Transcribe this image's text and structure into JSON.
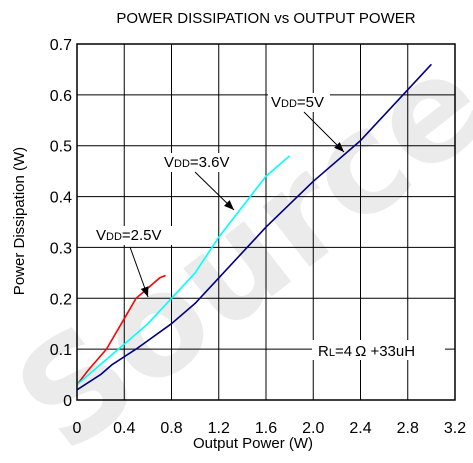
{
  "chart_data": {
    "type": "line",
    "title": "POWER DISSIPATION vs OUTPUT POWER",
    "xlabel": "Output Power (W)",
    "ylabel": "Power Dissipation (W)",
    "xlim": [
      0,
      3.2
    ],
    "ylim": [
      0,
      0.7
    ],
    "x_ticks": [
      "0",
      "0.4",
      "0.8",
      "1.2",
      "1.6",
      "2.0",
      "2.4",
      "2.8",
      "3.2"
    ],
    "y_ticks": [
      "0",
      "0.1",
      "0.2",
      "0.3",
      "0.4",
      "0.5",
      "0.6",
      "0.7"
    ],
    "grid": true,
    "series": [
      {
        "name": "VDD=2.5V",
        "color": "#ff0000",
        "x": [
          0,
          0.1,
          0.25,
          0.4,
          0.5,
          0.6,
          0.7,
          0.75
        ],
        "y": [
          0.03,
          0.06,
          0.1,
          0.16,
          0.2,
          0.22,
          0.24,
          0.245
        ]
      },
      {
        "name": "VDD=3.6V",
        "color": "#00ffff",
        "x": [
          0,
          0.2,
          0.4,
          0.6,
          0.8,
          1.0,
          1.2,
          1.4,
          1.6,
          1.8
        ],
        "y": [
          0.03,
          0.07,
          0.11,
          0.15,
          0.2,
          0.25,
          0.32,
          0.38,
          0.44,
          0.48
        ]
      },
      {
        "name": "VDD=5V",
        "color": "#000080",
        "x": [
          0,
          0.2,
          0.3,
          0.5,
          0.8,
          1.0,
          1.6,
          2.0,
          2.4,
          2.8,
          3.0
        ],
        "y": [
          0.02,
          0.05,
          0.07,
          0.1,
          0.15,
          0.19,
          0.34,
          0.43,
          0.51,
          0.61,
          0.66
        ]
      }
    ],
    "annotations": [
      {
        "main": "V",
        "sub": "DD",
        "rest": "=2.5V",
        "series": 0
      },
      {
        "main": "V",
        "sub": "DD",
        "rest": "=3.6V",
        "series": 1
      },
      {
        "main": "V",
        "sub": "DD",
        "rest": "=5V",
        "series": 2
      }
    ],
    "condition_label": {
      "main": "R",
      "sub": "L",
      "rest": "=4 Ω +33uH"
    },
    "watermark": "Source"
  }
}
